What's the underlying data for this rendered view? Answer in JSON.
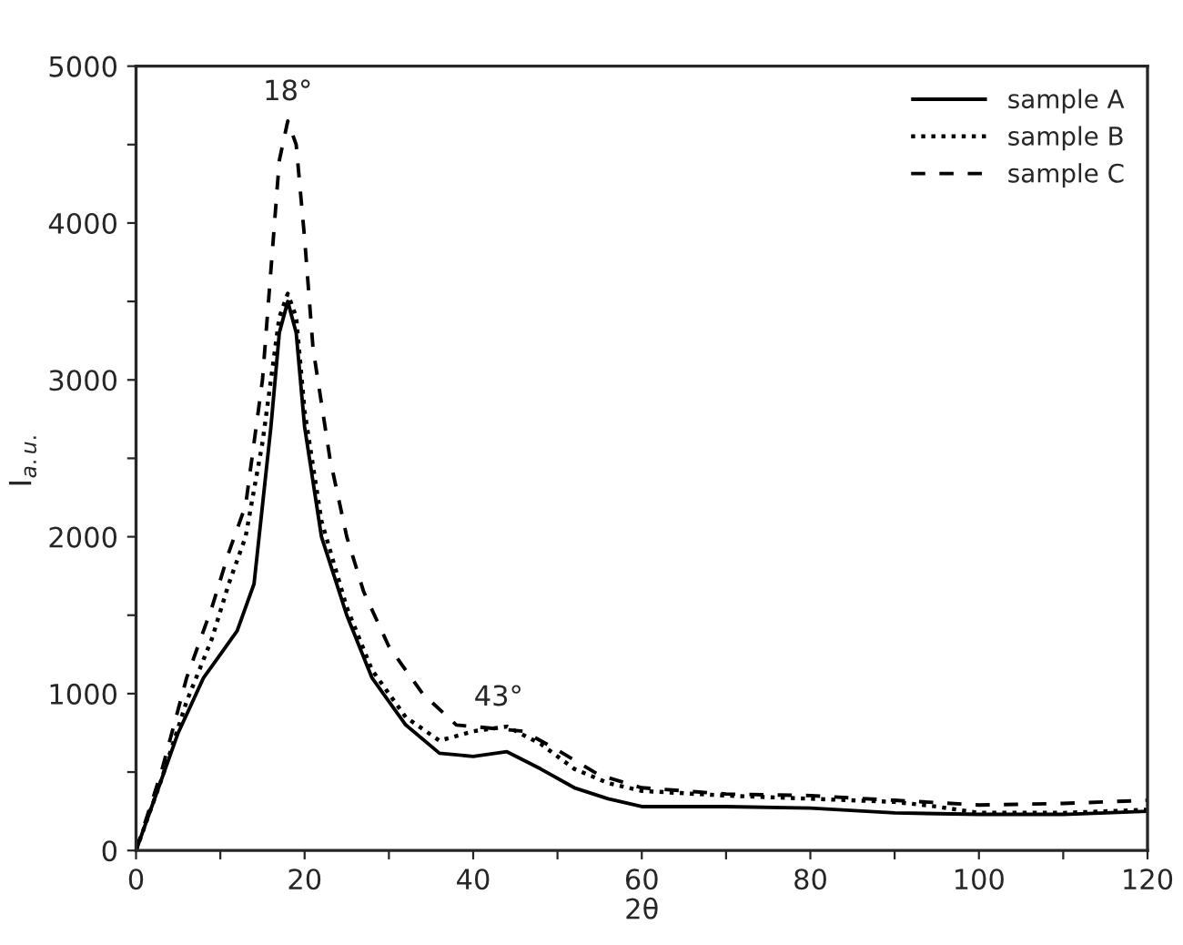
{
  "chart_data": {
    "type": "line",
    "xlabel": "2θ",
    "ylabel": "I$_{a.u.}$",
    "xlim": [
      0,
      120
    ],
    "ylim": [
      0,
      5000
    ],
    "xticks": [
      0,
      {
        "value": 10,
        "label": null
      },
      20,
      {
        "value": 30,
        "label": null
      },
      40,
      {
        "value": 50,
        "label": null
      },
      60,
      {
        "value": 70,
        "label": null
      },
      80,
      {
        "value": 90,
        "label": null
      },
      100,
      {
        "value": 110,
        "label": null
      },
      120
    ],
    "yticks": [
      0,
      {
        "value": 500,
        "label": null
      },
      1000,
      {
        "value": 1500,
        "label": null
      },
      2000,
      {
        "value": 2500,
        "label": null
      },
      3000,
      {
        "value": 3500,
        "label": null
      },
      4000,
      {
        "value": 4500,
        "label": null
      },
      5000
    ],
    "grid": false,
    "legend": "top right",
    "annotations": [
      {
        "text": "18°",
        "x": 18,
        "y": 4650
      },
      {
        "text": "43°",
        "x": 43,
        "y": 790
      }
    ],
    "series": [
      {
        "name": "sample A",
        "color": "#000000",
        "line_style": "solid",
        "x": [
          0,
          2,
          5,
          8,
          10,
          12,
          14,
          16,
          17,
          18,
          19,
          20,
          22,
          25,
          28,
          32,
          36,
          40,
          44,
          48,
          52,
          56,
          60,
          70,
          80,
          90,
          100,
          110,
          120
        ],
        "values": [
          0,
          300,
          750,
          1100,
          1250,
          1400,
          1700,
          2700,
          3300,
          3500,
          3300,
          2700,
          2000,
          1500,
          1100,
          800,
          620,
          600,
          630,
          520,
          400,
          330,
          280,
          280,
          270,
          240,
          230,
          230,
          250
        ]
      },
      {
        "name": "sample B",
        "color": "#000000",
        "line_style": "dotted",
        "x": [
          0,
          3,
          6,
          9,
          11,
          13,
          15,
          17,
          18,
          19,
          20,
          22,
          25,
          28,
          32,
          36,
          40,
          44,
          48,
          52,
          56,
          60,
          70,
          80,
          90,
          95,
          100,
          110,
          120
        ],
        "values": [
          0,
          450,
          950,
          1350,
          1700,
          2000,
          2600,
          3400,
          3550,
          3400,
          2800,
          2100,
          1550,
          1150,
          850,
          700,
          760,
          790,
          680,
          520,
          430,
          380,
          350,
          330,
          310,
          280,
          240,
          240,
          260
        ]
      },
      {
        "name": "sample C",
        "color": "#000000",
        "line_style": "dashed",
        "x": [
          0,
          3,
          6,
          9,
          11,
          13,
          15,
          16,
          17,
          18,
          19,
          20,
          21,
          23,
          25,
          27,
          30,
          34,
          38,
          42,
          46,
          50,
          55,
          60,
          70,
          80,
          90,
          100,
          110,
          120
        ],
        "values": [
          0,
          500,
          1100,
          1550,
          1900,
          2200,
          3000,
          3700,
          4400,
          4650,
          4500,
          3900,
          3200,
          2500,
          2000,
          1650,
          1300,
          1000,
          800,
          780,
          760,
          640,
          480,
          400,
          360,
          350,
          320,
          290,
          300,
          320
        ]
      }
    ]
  }
}
